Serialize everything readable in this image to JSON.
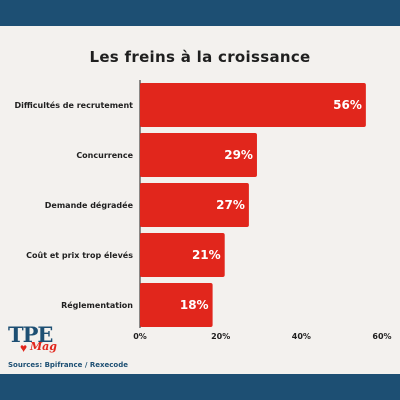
{
  "chart_data": {
    "type": "bar",
    "orientation": "horizontal",
    "title": "Les freins à la croissance",
    "categories": [
      "Difficultés de recrutement",
      "Concurrence",
      "Demande dégradée",
      "Coût et prix trop élevés",
      "Réglementation"
    ],
    "values": [
      56,
      29,
      27,
      21,
      18
    ],
    "value_labels": [
      "56%",
      "29%",
      "27%",
      "21%",
      "18%"
    ],
    "xlim": [
      0,
      60
    ],
    "x_ticks": [
      0,
      20,
      40,
      60
    ],
    "x_tick_labels": [
      "0%",
      "20%",
      "40%",
      "60%"
    ],
    "bar_color": "#e1261c",
    "grid": false
  },
  "branding": {
    "logo_text": "TPE",
    "logo_sub": "Mag",
    "band_color": "#1d4f73"
  },
  "source": "Sources: Bpifrance / Rexecode"
}
